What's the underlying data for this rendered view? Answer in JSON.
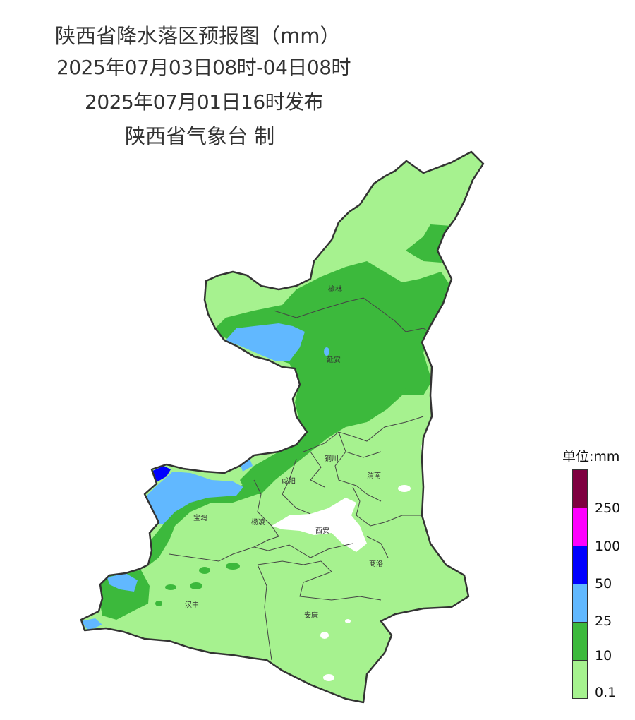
{
  "header": {
    "title": "陕西省降水落区预报图（mm）",
    "valid_period": "2025年07月03日08时-04日08时",
    "issued": "2025年07月01日16时发布",
    "producer": "陕西省气象台 制"
  },
  "cities": {
    "yulin": "榆林",
    "yanan": "延安",
    "tongchuan": "铜川",
    "xianyang": "咸阳",
    "weinan": "渭南",
    "baoji": "宝鸡",
    "yangling": "杨凌",
    "xian": "西安",
    "shangluo": "商洛",
    "hanzhong": "汉中",
    "ankang": "安康"
  },
  "legend": {
    "title": "单位:mm",
    "labels": [
      "250",
      "100",
      "50",
      "25",
      "10",
      "0.1"
    ],
    "colors": {
      "above_250": "#7f0040",
      "100_250": "#ff00ff",
      "50_100": "#0000ff",
      "25_50": "#61b8ff",
      "10_25": "#3cb93c",
      "0.1_10": "#a6f28f"
    }
  }
}
